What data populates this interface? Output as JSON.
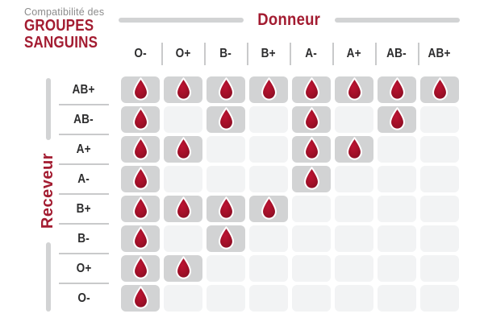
{
  "title": {
    "line1": "Compatibilité des",
    "line2": "GROUPES",
    "line3": "SANGUINS"
  },
  "donor_header": "Donneur",
  "receiver_header": "Receveur",
  "icons": {
    "drop": "blood-drop-icon"
  },
  "colors": {
    "red": "#a31c31",
    "heading_text": "#2d2d2e",
    "title_gray": "#8c8c8c",
    "bar": "#d2d3d4",
    "cell_filled": "#d2d3d4",
    "cell_empty": "#f2f3f4",
    "divider": "#c9cacb",
    "drop_light": "#bb1332",
    "drop_mid": "#a31028",
    "drop_dark": "#870d24",
    "drop_stroke": "#ffffff"
  },
  "chart_data": {
    "type": "table",
    "title": "Compatibilité des GROUPES SANGUINS",
    "x_header": "Donneur",
    "y_header": "Receveur",
    "columns": [
      "O-",
      "O+",
      "B-",
      "B+",
      "A-",
      "A+",
      "AB-",
      "AB+"
    ],
    "rows": [
      "AB+",
      "AB-",
      "A+",
      "A-",
      "B+",
      "B-",
      "O+",
      "O-"
    ],
    "matrix": [
      [
        1,
        1,
        1,
        1,
        1,
        1,
        1,
        1
      ],
      [
        1,
        0,
        1,
        0,
        1,
        0,
        1,
        0
      ],
      [
        1,
        1,
        0,
        0,
        1,
        1,
        0,
        0
      ],
      [
        1,
        0,
        0,
        0,
        1,
        0,
        0,
        0
      ],
      [
        1,
        1,
        1,
        1,
        0,
        0,
        0,
        0
      ],
      [
        1,
        0,
        1,
        0,
        0,
        0,
        0,
        0
      ],
      [
        1,
        1,
        0,
        0,
        0,
        0,
        0,
        0
      ],
      [
        1,
        0,
        0,
        0,
        0,
        0,
        0,
        0
      ]
    ],
    "cell_marker": "blood-drop",
    "legend_position": "none",
    "grid": "rounded-cells"
  }
}
